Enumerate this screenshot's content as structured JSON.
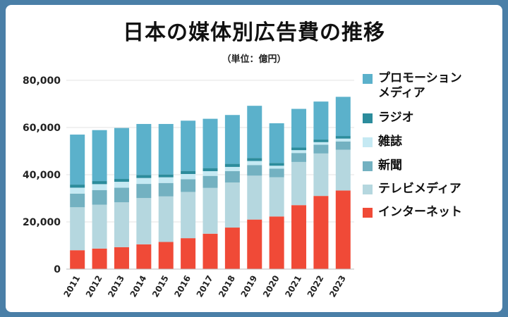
{
  "title": "日本の媒体別広告費の推移",
  "unit_label": "（単位：億円）",
  "chart_data": {
    "type": "bar",
    "stacked": true,
    "title": "日本の媒体別広告費の推移",
    "subtitle": "（単位：億円）",
    "xlabel": "",
    "ylabel": "",
    "ylim": [
      0,
      80000
    ],
    "yticks": [
      0,
      20000,
      40000,
      60000,
      80000
    ],
    "ytick_labels": [
      "0",
      "20,000",
      "40,000",
      "60,000",
      "80,000"
    ],
    "grid": true,
    "legend_position": "right",
    "categories": [
      "2011",
      "2012",
      "2013",
      "2014",
      "2015",
      "2016",
      "2017",
      "2018",
      "2019",
      "2020",
      "2021",
      "2022",
      "2023"
    ],
    "series": [
      {
        "name": "インターネット",
        "color": "#f04a37",
        "values": [
          8000,
          8700,
          9300,
          10500,
          11500,
          13100,
          15000,
          17600,
          21000,
          22300,
          27100,
          31000,
          33300
        ]
      },
      {
        "name": "テレビメディア",
        "color": "#b5d7df",
        "values": [
          18200,
          18600,
          19000,
          19600,
          19300,
          19600,
          19400,
          19100,
          18600,
          16600,
          18300,
          18000,
          17300
        ]
      },
      {
        "name": "新聞",
        "color": "#73b1c1",
        "values": [
          5800,
          6200,
          6200,
          6000,
          5700,
          5400,
          5100,
          4800,
          4500,
          3700,
          3800,
          3700,
          3500
        ]
      },
      {
        "name": "雑誌",
        "color": "#c5e9f3",
        "values": [
          2500,
          2500,
          2500,
          2500,
          2400,
          2200,
          2000,
          1800,
          1700,
          1200,
          1200,
          1100,
          1200
        ]
      },
      {
        "name": "ラジオ",
        "color": "#2c8c9c",
        "values": [
          1300,
          1300,
          1200,
          1300,
          1200,
          1300,
          1300,
          1300,
          1300,
          1200,
          1100,
          1100,
          1100
        ]
      },
      {
        "name": "プロモーションメディア",
        "color": "#5bb1cb",
        "values": [
          21200,
          21600,
          21600,
          21600,
          21400,
          21300,
          20900,
          20700,
          22100,
          16800,
          16400,
          16100,
          16600
        ]
      }
    ]
  },
  "legend": [
    {
      "label": "プロモーション\nメディア",
      "color": "#5bb1cb"
    },
    {
      "label": "ラジオ",
      "color": "#2c8c9c"
    },
    {
      "label": "雑誌",
      "color": "#c5e9f3"
    },
    {
      "label": "新聞",
      "color": "#73b1c1"
    },
    {
      "label": "テレビメディア",
      "color": "#b5d7df"
    },
    {
      "label": "インターネット",
      "color": "#f04a37"
    }
  ]
}
